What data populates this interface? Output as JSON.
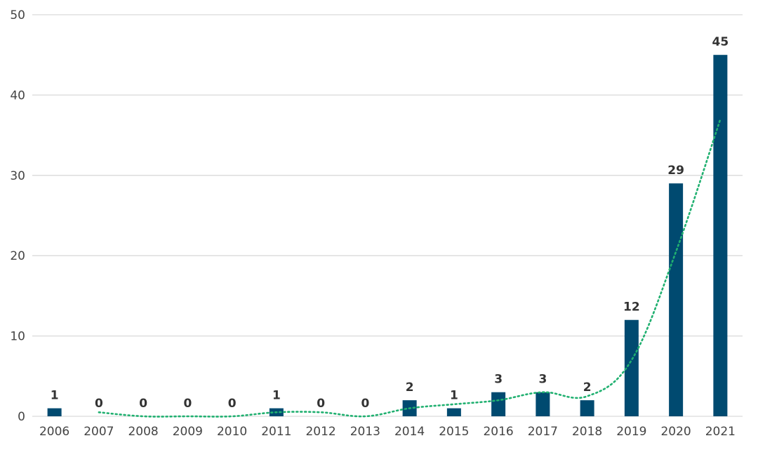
{
  "chart_data": {
    "type": "bar",
    "categories": [
      "2006",
      "2007",
      "2008",
      "2009",
      "2010",
      "2011",
      "2012",
      "2013",
      "2014",
      "2015",
      "2016",
      "2017",
      "2018",
      "2019",
      "2020",
      "2021"
    ],
    "values": [
      1,
      0,
      0,
      0,
      0,
      1,
      0,
      0,
      2,
      1,
      3,
      3,
      2,
      12,
      29,
      45
    ],
    "data_labels": [
      "1",
      "0",
      "0",
      "0",
      "0",
      "1",
      "0",
      "0",
      "2",
      "1",
      "3",
      "3",
      "2",
      "12",
      "29",
      "45"
    ],
    "trendline": {
      "type": "moving-average",
      "period": 2,
      "color": "#20b070"
    },
    "ylim": [
      0,
      50
    ],
    "yticks": [
      "0",
      "10",
      "20",
      "30",
      "40",
      "50"
    ],
    "grid": true,
    "bar_color": "#004a70"
  }
}
